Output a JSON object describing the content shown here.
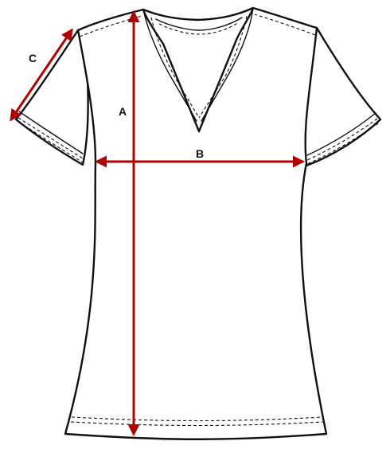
{
  "diagram": {
    "colors": {
      "outline": "#111111",
      "measure": "#b00000",
      "background": "#ffffff"
    },
    "measurements": [
      {
        "id": "A",
        "label": "A"
      },
      {
        "id": "B",
        "label": "B"
      },
      {
        "id": "C",
        "label": "C"
      }
    ]
  }
}
